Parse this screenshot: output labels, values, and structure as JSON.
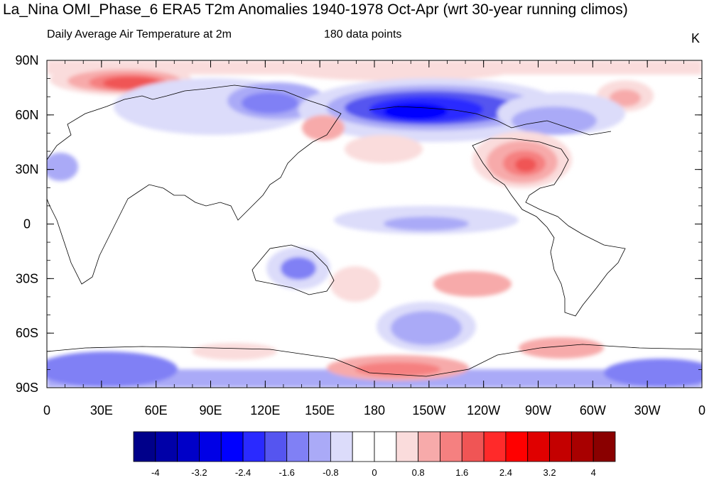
{
  "title": "La_Nina OMI_Phase_6 ERA5 T2m Anomalies 1940-1978 Oct-Apr (wrt 30-year running climos)",
  "subtitle_left": "Daily Average Air Temperature at 2m",
  "subtitle_center": "180 data points",
  "units": "K",
  "map": {
    "projection": "cylindrical equidistant, centered 180",
    "lat_labels": [
      "90N",
      "60N",
      "30N",
      "0",
      "30S",
      "60S",
      "90S"
    ],
    "lon_labels": [
      "0",
      "30E",
      "60E",
      "90E",
      "120E",
      "150E",
      "180",
      "150W",
      "120W",
      "90W",
      "60W",
      "30W",
      "0"
    ]
  },
  "colorbar": {
    "labels": [
      "-4",
      "-3.2",
      "-2.4",
      "-1.6",
      "-0.8",
      "0",
      "0.8",
      "1.6",
      "2.4",
      "3.2",
      "4"
    ],
    "colors": [
      "#00008a",
      "#0000a8",
      "#0000c8",
      "#0000e6",
      "#0000ff",
      "#2a2aff",
      "#5555f0",
      "#8080f5",
      "#aaaaf7",
      "#dcdcfa",
      "#ffffff",
      "#ffffff",
      "#fadcdc",
      "#f7aaaa",
      "#f58080",
      "#f05555",
      "#ff2a2a",
      "#ff0000",
      "#e00000",
      "#c40000",
      "#a80000",
      "#8a0000"
    ]
  },
  "anomaly_features": [
    {
      "region": "Arctic north of Scandinavia/Barents",
      "sign": "warm",
      "value": 2.0
    },
    {
      "region": "Siberia/Russia",
      "sign": "cold",
      "value": -1.2
    },
    {
      "region": "Bering Sea/Alaska",
      "sign": "cold",
      "value": -3.6
    },
    {
      "region": "Southern United States",
      "sign": "warm",
      "value": 2.0
    },
    {
      "region": "Kamchatka",
      "sign": "warm",
      "value": 1.6
    },
    {
      "region": "Central Australia",
      "sign": "cold",
      "value": -1.6
    },
    {
      "region": "Southern Pacific Ocean",
      "sign": "cold",
      "value": -1.2
    },
    {
      "region": "West Antarctica/Ross Sea",
      "sign": "warm",
      "value": 2.0
    },
    {
      "region": "East Antarctica",
      "sign": "cold",
      "value": -1.6
    }
  ]
}
